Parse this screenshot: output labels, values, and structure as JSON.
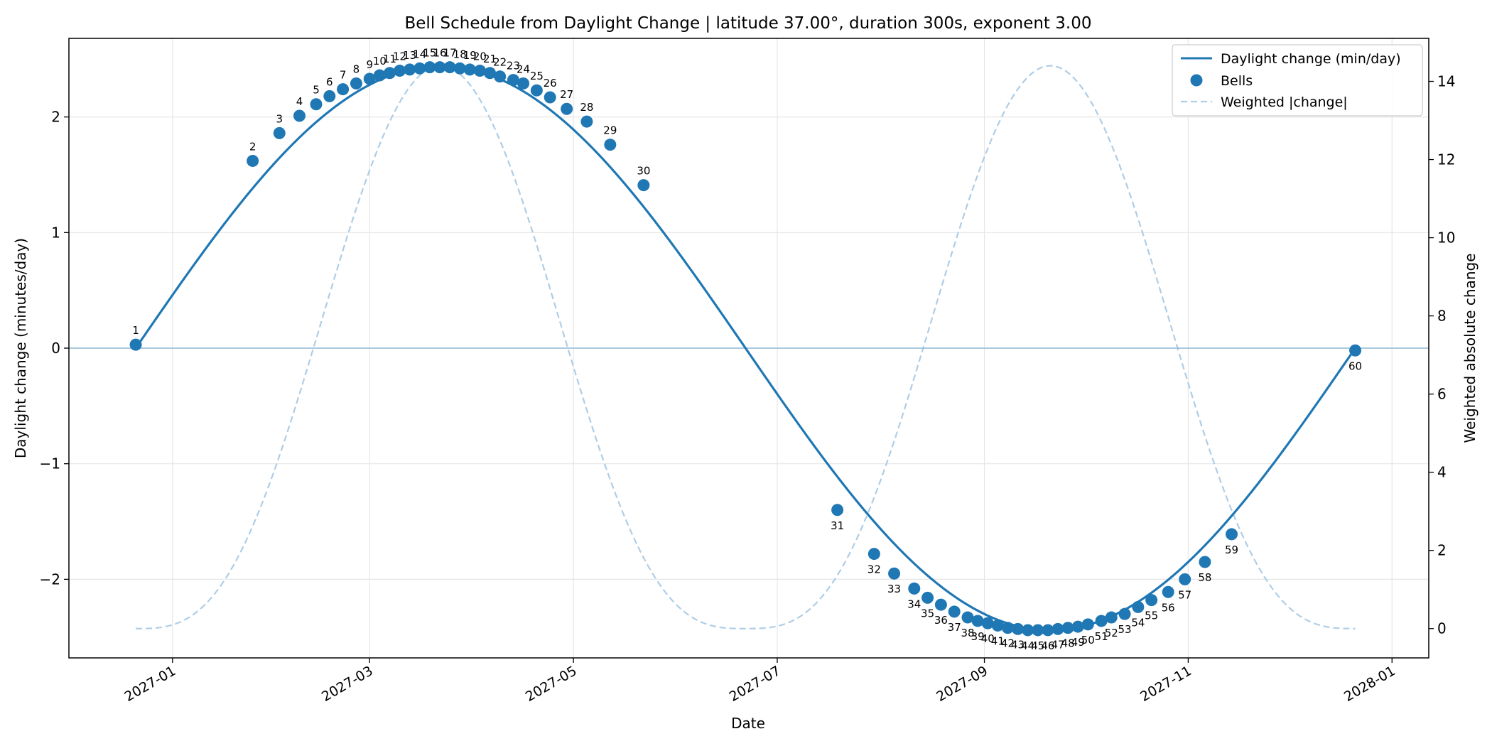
{
  "chart_data": {
    "type": "line",
    "title": "Bell Schedule from Daylight Change | latitude 37.00°, duration 300s, exponent 3.00",
    "xlabel": "Date",
    "ylabel": "Daylight change (minutes/day)",
    "ylabel_right": "Weighted absolute change",
    "x_range": [
      "2026-12-01",
      "2028-01-12"
    ],
    "ylim": [
      -2.68,
      2.68
    ],
    "ylim_right": [
      -0.75,
      15.1
    ],
    "x_ticks": [
      "2027-01",
      "2027-03",
      "2027-05",
      "2027-07",
      "2027-09",
      "2027-11",
      "2028-01"
    ],
    "y_ticks": [
      -2,
      -1,
      0,
      1,
      2
    ],
    "y_ticks_right": [
      0,
      2,
      4,
      6,
      8,
      10,
      12,
      14
    ],
    "grid": true,
    "legend_position": "top-right",
    "series": [
      {
        "name": "Daylight change (min/day)",
        "kind": "line",
        "color": "#1f77b4",
        "start": "2026-12-21",
        "end": "2027-12-21",
        "amplitude": 2.44,
        "axis": "left"
      },
      {
        "name": "Bells",
        "kind": "scatter",
        "color": "#1f77b4",
        "axis": "left"
      },
      {
        "name": "Weighted |change|",
        "kind": "dashed-line",
        "color": "#aecde6",
        "start": "2026-12-21",
        "end": "2027-12-21",
        "peak": 14.4,
        "exponent": 3,
        "axis": "right"
      }
    ],
    "bells": [
      {
        "n": "1",
        "date": "2026-12-21",
        "y": 0.03
      },
      {
        "n": "2",
        "date": "2027-01-25",
        "y": 1.62
      },
      {
        "n": "3",
        "date": "2027-02-02",
        "y": 1.86
      },
      {
        "n": "4",
        "date": "2027-02-08",
        "y": 2.01
      },
      {
        "n": "5",
        "date": "2027-02-13",
        "y": 2.11
      },
      {
        "n": "6",
        "date": "2027-02-17",
        "y": 2.18
      },
      {
        "n": "7",
        "date": "2027-02-21",
        "y": 2.24
      },
      {
        "n": "8",
        "date": "2027-02-25",
        "y": 2.29
      },
      {
        "n": "9",
        "date": "2027-03-01",
        "y": 2.33
      },
      {
        "n": "10",
        "date": "2027-03-04",
        "y": 2.36
      },
      {
        "n": "11",
        "date": "2027-03-07",
        "y": 2.38
      },
      {
        "n": "12",
        "date": "2027-03-10",
        "y": 2.4
      },
      {
        "n": "13",
        "date": "2027-03-13",
        "y": 2.41
      },
      {
        "n": "14",
        "date": "2027-03-16",
        "y": 2.42
      },
      {
        "n": "15",
        "date": "2027-03-19",
        "y": 2.43
      },
      {
        "n": "16",
        "date": "2027-03-22",
        "y": 2.43
      },
      {
        "n": "17",
        "date": "2027-03-25",
        "y": 2.43
      },
      {
        "n": "18",
        "date": "2027-03-28",
        "y": 2.42
      },
      {
        "n": "19",
        "date": "2027-03-31",
        "y": 2.41
      },
      {
        "n": "20",
        "date": "2027-04-03",
        "y": 2.4
      },
      {
        "n": "21",
        "date": "2027-04-06",
        "y": 2.38
      },
      {
        "n": "22",
        "date": "2027-04-09",
        "y": 2.35
      },
      {
        "n": "23",
        "date": "2027-04-13",
        "y": 2.32
      },
      {
        "n": "24",
        "date": "2027-04-16",
        "y": 2.29
      },
      {
        "n": "25",
        "date": "2027-04-20",
        "y": 2.23
      },
      {
        "n": "26",
        "date": "2027-04-24",
        "y": 2.17
      },
      {
        "n": "27",
        "date": "2027-04-29",
        "y": 2.07
      },
      {
        "n": "28",
        "date": "2027-05-05",
        "y": 1.96
      },
      {
        "n": "29",
        "date": "2027-05-12",
        "y": 1.76
      },
      {
        "n": "30",
        "date": "2027-05-22",
        "y": 1.41
      },
      {
        "n": "31",
        "date": "2027-07-19",
        "y": -1.4
      },
      {
        "n": "32",
        "date": "2027-07-30",
        "y": -1.78
      },
      {
        "n": "33",
        "date": "2027-08-05",
        "y": -1.95
      },
      {
        "n": "34",
        "date": "2027-08-11",
        "y": -2.08
      },
      {
        "n": "35",
        "date": "2027-08-15",
        "y": -2.16
      },
      {
        "n": "36",
        "date": "2027-08-19",
        "y": -2.22
      },
      {
        "n": "37",
        "date": "2027-08-23",
        "y": -2.28
      },
      {
        "n": "38",
        "date": "2027-08-27",
        "y": -2.33
      },
      {
        "n": "39",
        "date": "2027-08-30",
        "y": -2.36
      },
      {
        "n": "40",
        "date": "2027-09-02",
        "y": -2.38
      },
      {
        "n": "41",
        "date": "2027-09-05",
        "y": -2.4
      },
      {
        "n": "42",
        "date": "2027-09-08",
        "y": -2.42
      },
      {
        "n": "43",
        "date": "2027-09-11",
        "y": -2.43
      },
      {
        "n": "44",
        "date": "2027-09-14",
        "y": -2.44
      },
      {
        "n": "45",
        "date": "2027-09-17",
        "y": -2.44
      },
      {
        "n": "46",
        "date": "2027-09-20",
        "y": -2.44
      },
      {
        "n": "47",
        "date": "2027-09-23",
        "y": -2.43
      },
      {
        "n": "48",
        "date": "2027-09-26",
        "y": -2.42
      },
      {
        "n": "49",
        "date": "2027-09-29",
        "y": -2.41
      },
      {
        "n": "50",
        "date": "2027-10-02",
        "y": -2.39
      },
      {
        "n": "51",
        "date": "2027-10-06",
        "y": -2.36
      },
      {
        "n": "52",
        "date": "2027-10-09",
        "y": -2.33
      },
      {
        "n": "53",
        "date": "2027-10-13",
        "y": -2.3
      },
      {
        "n": "54",
        "date": "2027-10-17",
        "y": -2.24
      },
      {
        "n": "55",
        "date": "2027-10-21",
        "y": -2.18
      },
      {
        "n": "56",
        "date": "2027-10-26",
        "y": -2.11
      },
      {
        "n": "57",
        "date": "2027-10-31",
        "y": -2.0
      },
      {
        "n": "58",
        "date": "2027-11-06",
        "y": -1.85
      },
      {
        "n": "59",
        "date": "2027-11-14",
        "y": -1.61
      },
      {
        "n": "60",
        "date": "2027-12-21",
        "y": -0.02
      }
    ]
  }
}
